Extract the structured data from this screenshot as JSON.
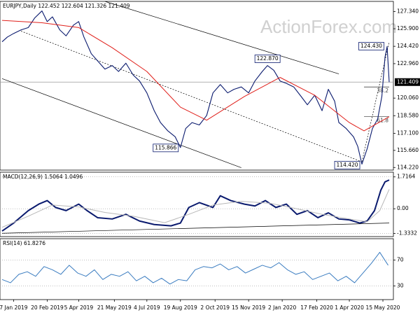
{
  "watermark": "ActionForex.com",
  "chart_data": [
    {
      "type": "line",
      "title": "EURJPY,Daily 122.452 122.604 121.326 121.409",
      "xlim": [
        -2,
        373
      ],
      "ylim": [
        114.0,
        128.2
      ],
      "yticks": [
        {
          "value": 127.34,
          "label": "127.340"
        },
        {
          "value": 125.9,
          "label": "125.900"
        },
        {
          "value": 124.42,
          "label": "124.420"
        },
        {
          "value": 122.96,
          "label": "122.960"
        },
        {
          "value": 120.06,
          "label": "120.060"
        },
        {
          "value": 118.58,
          "label": "118.580"
        },
        {
          "value": 117.1,
          "label": "117.100"
        },
        {
          "value": 115.66,
          "label": "115.660"
        },
        {
          "value": 114.22,
          "label": "114.220"
        }
      ],
      "last_price": 121.409,
      "grid": false,
      "series": [
        {
          "color": "#0a1a6e",
          "width": 1.1,
          "x": [
            0,
            5,
            11,
            18,
            25,
            31,
            38,
            43,
            48,
            55,
            61,
            68,
            73,
            78,
            85,
            91,
            98,
            105,
            111,
            118,
            125,
            131,
            138,
            145,
            151,
            158,
            165,
            170,
            175,
            181,
            188,
            195,
            201,
            208,
            215,
            221,
            228,
            235,
            241,
            248,
            253,
            259,
            265,
            271,
            278,
            285,
            291,
            298,
            305,
            311,
            317,
            321,
            328,
            335,
            339,
            343,
            348,
            353,
            358,
            362,
            365,
            367,
            369
          ],
          "values": [
            124.8,
            125.2,
            125.5,
            125.8,
            126.0,
            126.8,
            127.4,
            126.5,
            126.9,
            125.8,
            125.3,
            126.2,
            126.5,
            125.2,
            123.8,
            123.2,
            122.5,
            122.8,
            122.3,
            123.0,
            122.0,
            121.5,
            120.5,
            119.0,
            118.0,
            117.3,
            116.8,
            115.9,
            117.5,
            118.0,
            117.8,
            118.6,
            120.5,
            121.2,
            120.5,
            120.8,
            121.0,
            120.5,
            121.5,
            122.3,
            122.8,
            122.4,
            121.5,
            121.3,
            121.0,
            120.2,
            119.5,
            120.3,
            119.0,
            120.8,
            119.8,
            118.0,
            117.5,
            116.8,
            116.0,
            114.5,
            115.8,
            117.5,
            118.3,
            120.2,
            123.5,
            124.4,
            121.4
          ]
        },
        {
          "color": "#e0201b",
          "width": 1,
          "x": [
            0,
            38,
            73,
            105,
            138,
            170,
            195,
            231,
            265,
            298,
            331,
            345,
            369
          ],
          "values": [
            126.6,
            126.4,
            126.0,
            124.3,
            122.3,
            119.3,
            118.2,
            120.2,
            121.8,
            120.3,
            118.0,
            117.3,
            118.5
          ]
        }
      ],
      "trendlines": [
        {
          "x": [
            98,
            321
          ],
          "values": [
            128.2,
            122.1
          ],
          "style": "solid"
        },
        {
          "x": [
            0,
            228
          ],
          "values": [
            121.7,
            114.2
          ],
          "style": "solid"
        },
        {
          "x": [
            18,
            343
          ],
          "values": [
            125.7,
            114.7
          ],
          "style": "dotted"
        },
        {
          "x": [
            343,
            369
          ],
          "values": [
            114.7,
            124.8
          ],
          "style": "dotted"
        }
      ],
      "fib_levels": [
        {
          "level": 38.2,
          "price": 121.0,
          "x": [
            345,
            369
          ]
        },
        {
          "level": 61.8,
          "price": 118.5,
          "x": [
            345,
            369
          ]
        }
      ],
      "price_labels": [
        {
          "x": 253,
          "value": 122.87,
          "label": "122.870",
          "anchor": "above"
        },
        {
          "x": 170,
          "value": 115.866,
          "anchor": "left"
        },
        {
          "x": 343,
          "value": 114.42,
          "label": "114.420",
          "anchor": "left"
        },
        {
          "x": 366,
          "value": 124.43,
          "label": "124.430",
          "anchor": "left"
        }
      ]
    },
    {
      "type": "line",
      "title": "MACD(12,26,9) 1.5064 1.0496",
      "xlim": [
        -2,
        373
      ],
      "ylim": [
        -1.5,
        1.97
      ],
      "yticks": [
        1.7164,
        {
          "value": 0,
          "label": "0.00"
        },
        -1.3332
      ],
      "grid": true,
      "series": [
        {
          "color": "#0a1a6e",
          "width": 2,
          "x": [
            0,
            11,
            25,
            35,
            43,
            51,
            61,
            73,
            81,
            91,
            105,
            118,
            131,
            145,
            161,
            170,
            178,
            188,
            201,
            208,
            218,
            231,
            241,
            251,
            261,
            271,
            281,
            291,
            301,
            311,
            321,
            331,
            341,
            348,
            355,
            361,
            365,
            369
          ],
          "values": [
            -1.2,
            -0.77,
            -0.1,
            0.25,
            0.44,
            0.07,
            -0.1,
            0.25,
            -0.1,
            -0.48,
            -0.55,
            -0.3,
            -0.66,
            -0.85,
            -0.92,
            -0.77,
            0.07,
            0.33,
            0.07,
            0.7,
            0.44,
            0.25,
            0.15,
            0.44,
            0.07,
            0.25,
            -0.3,
            -0.1,
            -0.48,
            -0.22,
            -0.55,
            -0.6,
            -0.77,
            -0.66,
            -0.1,
            1.0,
            1.45,
            1.55
          ]
        },
        {
          "color": "#b8b8b8",
          "width": 1,
          "x": [
            0,
            25,
            48,
            73,
            98,
            125,
            155,
            178,
            201,
            228,
            255,
            281,
            305,
            331,
            348,
            360,
            369
          ],
          "values": [
            -1.0,
            -0.4,
            0.2,
            0.1,
            -0.2,
            -0.4,
            -0.75,
            -0.3,
            0.2,
            0.4,
            0.3,
            0.0,
            -0.3,
            -0.55,
            -0.7,
            -0.1,
            1.05
          ]
        }
      ],
      "trendlines": [
        {
          "x": [
            0,
            369
          ],
          "values": [
            -1.32,
            -0.77
          ],
          "style": "solid"
        }
      ]
    },
    {
      "type": "line",
      "title": "RSI(14) 61.8276",
      "xlim": [
        -2,
        373
      ],
      "ylim": [
        9,
        103
      ],
      "yticks": [
        70,
        30
      ],
      "grid": true,
      "series": [
        {
          "color": "#3a7cc0",
          "width": 1,
          "x": [
            0,
            8,
            16,
            24,
            32,
            40,
            48,
            56,
            64,
            72,
            80,
            88,
            96,
            104,
            112,
            120,
            128,
            136,
            144,
            152,
            160,
            168,
            176,
            184,
            192,
            200,
            208,
            216,
            224,
            232,
            240,
            248,
            256,
            264,
            272,
            280,
            288,
            296,
            304,
            312,
            320,
            328,
            336,
            344,
            352,
            360,
            368
          ],
          "values": [
            40,
            35,
            48,
            52,
            45,
            60,
            55,
            48,
            62,
            50,
            45,
            55,
            40,
            48,
            45,
            52,
            38,
            45,
            35,
            42,
            33,
            40,
            38,
            55,
            60,
            58,
            64,
            55,
            60,
            50,
            56,
            62,
            58,
            66,
            55,
            48,
            52,
            40,
            45,
            50,
            38,
            45,
            35,
            50,
            65,
            82,
            62
          ]
        }
      ],
      "xticks": [
        {
          "value": 11,
          "label": "7 Jan 2019"
        },
        {
          "value": 43,
          "label": "20 Feb 2019"
        },
        {
          "value": 73,
          "label": "5 Apr 2019"
        },
        {
          "value": 107,
          "label": "21 May 2019"
        },
        {
          "value": 138,
          "label": "4 Jul 2019"
        },
        {
          "value": 170,
          "label": "19 Aug 2019"
        },
        {
          "value": 203,
          "label": "2 Oct 2019"
        },
        {
          "value": 235,
          "label": "15 Nov 2019"
        },
        {
          "value": 267,
          "label": "2 Jan 2020"
        },
        {
          "value": 300,
          "label": "17 Feb 2020"
        },
        {
          "value": 331,
          "label": "1 Apr 2020"
        },
        {
          "value": 363,
          "label": "15 May 2020"
        }
      ]
    }
  ]
}
